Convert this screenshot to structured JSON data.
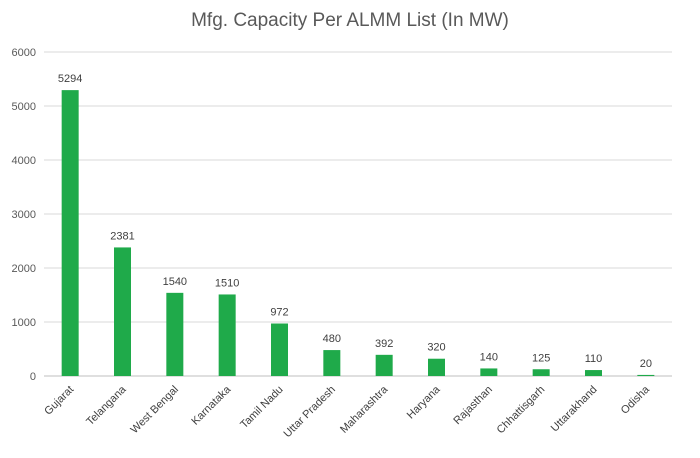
{
  "chart_data": {
    "type": "bar",
    "title": "Mfg. Capacity Per ALMM List (In MW)",
    "categories": [
      "Gujarat",
      "Telangana",
      "West Bengal",
      "Karnataka",
      "Tamil Nadu",
      "Uttar Pradesh",
      "Maharashtra",
      "Haryana",
      "Rajasthan",
      "Chhattisgarh",
      "Uttarakhand",
      "Odisha"
    ],
    "values": [
      5294,
      2381,
      1540,
      1510,
      972,
      480,
      392,
      320,
      140,
      125,
      110,
      20
    ],
    "data_labels": [
      "5294",
      "2381",
      "1540",
      "1510",
      "972",
      "480",
      "392",
      "320",
      "140",
      "125",
      "110",
      "20"
    ],
    "ylim": [
      0,
      6000
    ],
    "yticks": [
      0,
      1000,
      2000,
      3000,
      4000,
      5000,
      6000
    ],
    "ytick_labels": [
      "0",
      "1000",
      "2000",
      "3000",
      "4000",
      "5000",
      "6000"
    ],
    "grid": true,
    "legend": "none",
    "bar_color": "#1faa4a"
  }
}
